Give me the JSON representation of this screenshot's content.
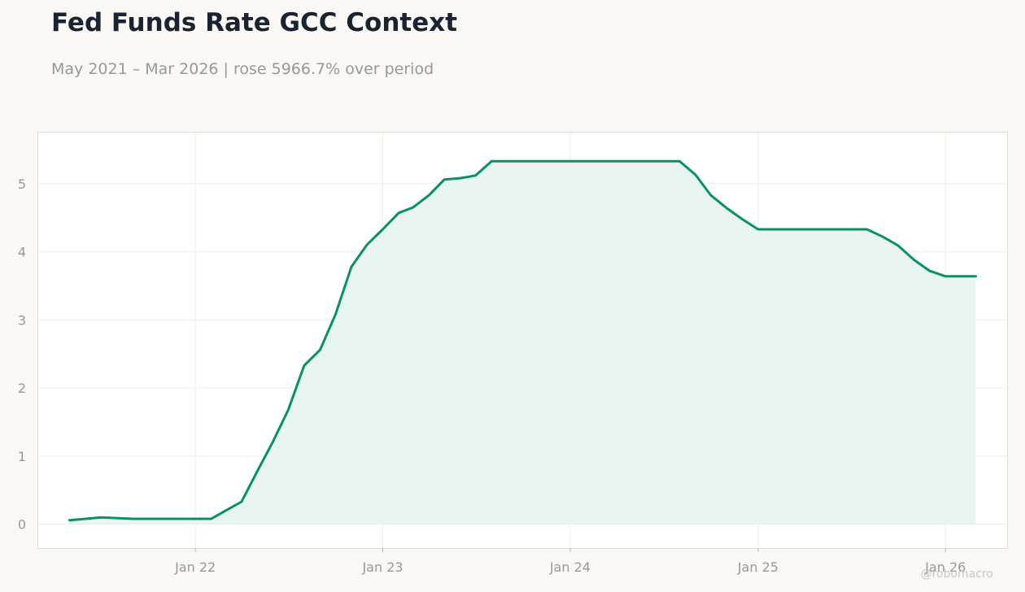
{
  "title": "Fed Funds Rate GCC Context",
  "subtitle": "May 2021 – Mar 2026 | rose 5966.7% over period",
  "watermark": "@robomacro",
  "colors": {
    "line": "#0a9068",
    "area": "#e8f4ef",
    "background": "#f9f8f5",
    "plot_background": "#ffffff"
  },
  "chart_data": {
    "type": "area",
    "title": "Fed Funds Rate GCC Context",
    "xlabel": "",
    "ylabel": "",
    "grid": true,
    "xlim": [
      "2021-03-01",
      "2026-05-01"
    ],
    "ylim": [
      -0.35,
      5.75
    ],
    "y_ticks": [
      0,
      1,
      2,
      3,
      4,
      5
    ],
    "x_ticks": [
      {
        "date": "2022-01-01",
        "label": "Jan 22"
      },
      {
        "date": "2023-01-01",
        "label": "Jan 23"
      },
      {
        "date": "2024-01-01",
        "label": "Jan 24"
      },
      {
        "date": "2025-01-01",
        "label": "Jan 25"
      },
      {
        "date": "2026-01-01",
        "label": "Jan 26"
      }
    ],
    "series": [
      {
        "points": [
          [
            "2021-05-01",
            0.06
          ],
          [
            "2021-06-01",
            0.08
          ],
          [
            "2021-07-01",
            0.1
          ],
          [
            "2021-08-01",
            0.09
          ],
          [
            "2021-09-01",
            0.08
          ],
          [
            "2021-10-01",
            0.08
          ],
          [
            "2021-11-01",
            0.08
          ],
          [
            "2021-12-01",
            0.08
          ],
          [
            "2022-01-01",
            0.08
          ],
          [
            "2022-02-01",
            0.08
          ],
          [
            "2022-03-01",
            0.2
          ],
          [
            "2022-04-01",
            0.33
          ],
          [
            "2022-05-01",
            0.77
          ],
          [
            "2022-06-01",
            1.21
          ],
          [
            "2022-07-01",
            1.68
          ],
          [
            "2022-08-01",
            2.33
          ],
          [
            "2022-09-01",
            2.56
          ],
          [
            "2022-10-01",
            3.08
          ],
          [
            "2022-11-01",
            3.78
          ],
          [
            "2022-12-01",
            4.1
          ],
          [
            "2023-01-01",
            4.33
          ],
          [
            "2023-02-01",
            4.57
          ],
          [
            "2023-03-01",
            4.65
          ],
          [
            "2023-04-01",
            4.83
          ],
          [
            "2023-05-01",
            5.06
          ],
          [
            "2023-06-01",
            5.08
          ],
          [
            "2023-07-01",
            5.12
          ],
          [
            "2023-08-01",
            5.33
          ],
          [
            "2023-09-01",
            5.33
          ],
          [
            "2023-10-01",
            5.33
          ],
          [
            "2023-11-01",
            5.33
          ],
          [
            "2023-12-01",
            5.33
          ],
          [
            "2024-01-01",
            5.33
          ],
          [
            "2024-02-01",
            5.33
          ],
          [
            "2024-03-01",
            5.33
          ],
          [
            "2024-04-01",
            5.33
          ],
          [
            "2024-05-01",
            5.33
          ],
          [
            "2024-06-01",
            5.33
          ],
          [
            "2024-07-01",
            5.33
          ],
          [
            "2024-08-01",
            5.33
          ],
          [
            "2024-09-01",
            5.13
          ],
          [
            "2024-10-01",
            4.83
          ],
          [
            "2024-11-01",
            4.64
          ],
          [
            "2024-12-01",
            4.48
          ],
          [
            "2025-01-01",
            4.33
          ],
          [
            "2025-02-01",
            4.33
          ],
          [
            "2025-03-01",
            4.33
          ],
          [
            "2025-04-01",
            4.33
          ],
          [
            "2025-05-01",
            4.33
          ],
          [
            "2025-06-01",
            4.33
          ],
          [
            "2025-07-01",
            4.33
          ],
          [
            "2025-08-01",
            4.33
          ],
          [
            "2025-09-01",
            4.22
          ],
          [
            "2025-10-01",
            4.09
          ],
          [
            "2025-11-01",
            3.88
          ],
          [
            "2025-12-01",
            3.72
          ],
          [
            "2026-01-01",
            3.64
          ],
          [
            "2026-02-01",
            3.64
          ],
          [
            "2026-03-01",
            3.64
          ]
        ]
      }
    ]
  }
}
